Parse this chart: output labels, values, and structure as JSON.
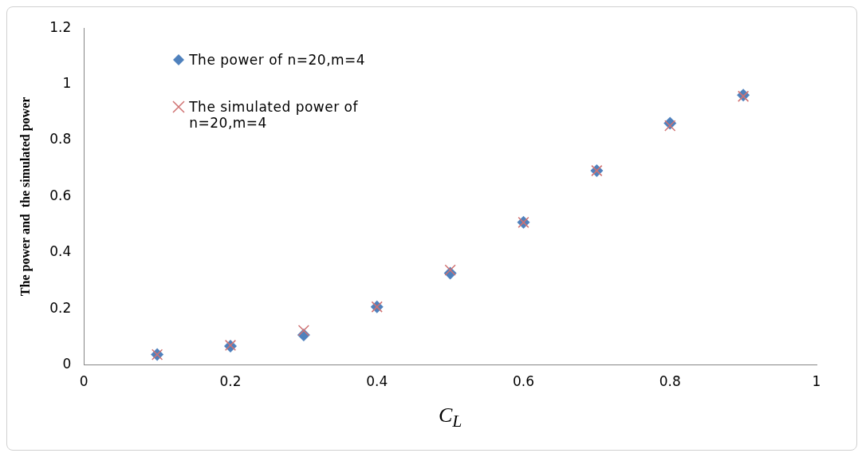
{
  "chart_data": {
    "type": "scatter",
    "xlabel": "C$_{L}$",
    "ylabel": "The power and  the simulated power",
    "xlim": [
      0,
      1
    ],
    "xticks": [
      0,
      0.2,
      0.4,
      0.6,
      0.8,
      1
    ],
    "ylim": [
      0,
      1.2
    ],
    "yticks": [
      0,
      0.2,
      0.4,
      0.6,
      0.8,
      1,
      1.2
    ],
    "grid": false,
    "legend": "top left",
    "x": [
      0.1,
      0.2,
      0.3,
      0.4,
      0.5,
      0.6,
      0.7,
      0.8,
      0.9
    ],
    "series": [
      {
        "name": "The power of n=20,m=4",
        "color": "#4f81bd",
        "marker": "diamond",
        "values": [
          0.037,
          0.067,
          0.107,
          0.207,
          0.327,
          0.508,
          0.692,
          0.861,
          0.961
        ]
      },
      {
        "name": "The simulated power of n=20,m=4",
        "color": "#d07272",
        "marker": "cross",
        "values": [
          0.037,
          0.07,
          0.123,
          0.207,
          0.338,
          0.508,
          0.692,
          0.852,
          0.957
        ]
      }
    ]
  }
}
